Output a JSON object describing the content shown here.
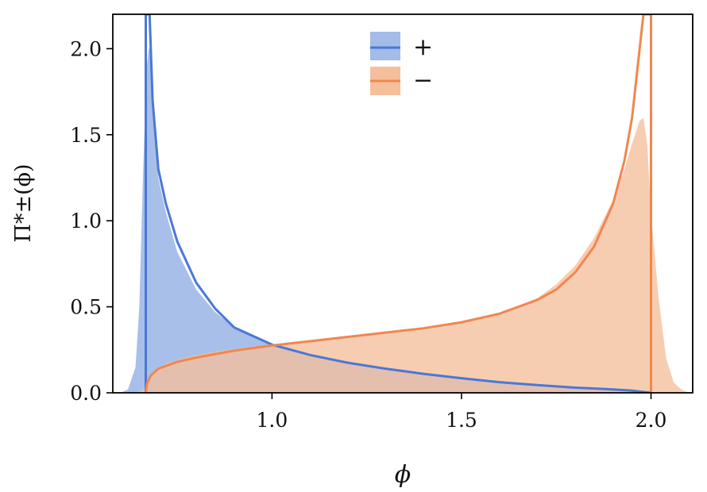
{
  "chart_data": {
    "type": "area",
    "xlabel": "ϕ",
    "ylabel": "Π*±(ϕ)",
    "xlim": [
      0.58,
      2.11
    ],
    "ylim": [
      0,
      2.2
    ],
    "x_ticks": [
      1.0,
      1.5,
      2.0
    ],
    "y_ticks": [
      0.0,
      0.5,
      1.0,
      1.5,
      2.0
    ],
    "x_tick_labels": [
      "1.0",
      "1.5",
      "2.0"
    ],
    "y_tick_labels": [
      "0.0",
      "0.5",
      "1.0",
      "1.5",
      "2.0"
    ],
    "grid": false,
    "legend_position": "top-center",
    "series": [
      {
        "name": "+",
        "color": "#4a78d6",
        "fill_color": "#a3bce8",
        "histogram": {
          "x": [
            0.6,
            0.62,
            0.64,
            0.65,
            0.66,
            0.67,
            0.675,
            0.68,
            0.685,
            0.69,
            0.7,
            0.72,
            0.75,
            0.8,
            0.85,
            0.9,
            1.0,
            1.1,
            1.2,
            1.3,
            1.4,
            1.5,
            1.6,
            1.7,
            1.8,
            1.9,
            2.0
          ],
          "y": [
            0.0,
            0.02,
            0.15,
            0.5,
            1.3,
            1.9,
            2.0,
            2.0,
            1.8,
            1.5,
            1.25,
            1.05,
            0.82,
            0.6,
            0.47,
            0.38,
            0.28,
            0.22,
            0.175,
            0.14,
            0.11,
            0.085,
            0.06,
            0.045,
            0.03,
            0.02,
            0.01
          ]
        },
        "curve": {
          "x": [
            0.668,
            0.669,
            0.672,
            0.677,
            0.685,
            0.7,
            0.72,
            0.75,
            0.8,
            0.85,
            0.9,
            1.0,
            1.1,
            1.2,
            1.3,
            1.4,
            1.5,
            1.6,
            1.7,
            1.8,
            1.9,
            1.95,
            2.0
          ],
          "y": [
            2.2,
            2.2,
            2.2,
            2.2,
            1.7,
            1.3,
            1.1,
            0.88,
            0.64,
            0.49,
            0.38,
            0.28,
            0.22,
            0.175,
            0.14,
            0.11,
            0.085,
            0.062,
            0.045,
            0.03,
            0.02,
            0.013,
            0.0
          ]
        },
        "vertical_line_x": 0.667
      },
      {
        "name": "−",
        "color": "#f0874e",
        "fill_color": "#f5bf9c",
        "histogram": {
          "x": [
            0.64,
            0.66,
            0.67,
            0.69,
            0.72,
            0.78,
            0.85,
            0.9,
            1.0,
            1.1,
            1.2,
            1.3,
            1.4,
            1.5,
            1.6,
            1.7,
            1.75,
            1.8,
            1.85,
            1.9,
            1.93,
            1.95,
            1.97,
            1.98,
            1.99,
            2.0,
            2.02,
            2.04,
            2.06,
            2.08,
            2.1
          ],
          "y": [
            0.0,
            0.02,
            0.06,
            0.12,
            0.17,
            0.21,
            0.24,
            0.255,
            0.28,
            0.305,
            0.33,
            0.355,
            0.38,
            0.41,
            0.46,
            0.55,
            0.63,
            0.74,
            0.9,
            1.12,
            1.3,
            1.45,
            1.58,
            1.6,
            1.45,
            1.05,
            0.55,
            0.2,
            0.06,
            0.02,
            0.0
          ]
        },
        "curve": {
          "x": [
            0.667,
            0.67,
            0.68,
            0.7,
            0.75,
            0.8,
            0.9,
            1.0,
            1.1,
            1.2,
            1.3,
            1.4,
            1.5,
            1.6,
            1.7,
            1.75,
            1.8,
            1.85,
            1.9,
            1.93,
            1.95,
            1.97,
            1.98,
            1.99,
            1.995,
            1.997,
            1.999
          ],
          "y": [
            0.0,
            0.05,
            0.1,
            0.14,
            0.18,
            0.205,
            0.245,
            0.275,
            0.3,
            0.325,
            0.35,
            0.375,
            0.41,
            0.46,
            0.54,
            0.6,
            0.7,
            0.85,
            1.1,
            1.35,
            1.6,
            2.0,
            2.2,
            2.2,
            2.2,
            2.2,
            2.2
          ]
        },
        "vertical_line_x": 2.0
      }
    ]
  }
}
